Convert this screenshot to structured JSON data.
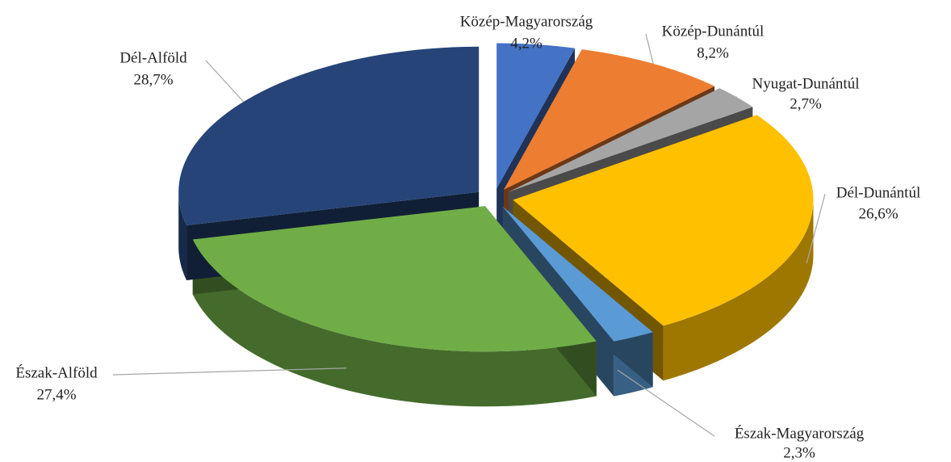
{
  "chart_data": {
    "type": "pie",
    "categories": [
      "Közép-Magyarország",
      "Közép-Dunántúl",
      "Nyugat-Dunántúl",
      "Dél-Dunántúl",
      "Észak-Magyarország",
      "Észak-Alföld",
      "Dél-Alföld"
    ],
    "values": [
      4.2,
      8.2,
      2.7,
      26.6,
      2.3,
      27.4,
      28.7
    ],
    "value_labels": [
      "4,2%",
      "8,2%",
      "2,7%",
      "26,6%",
      "2,3%",
      "27,4%",
      "28,7%"
    ],
    "colors": [
      "#4472c4",
      "#ed7d31",
      "#a5a5a5",
      "#ffc000",
      "#5b9bd5",
      "#70ad47",
      "#264478"
    ]
  }
}
